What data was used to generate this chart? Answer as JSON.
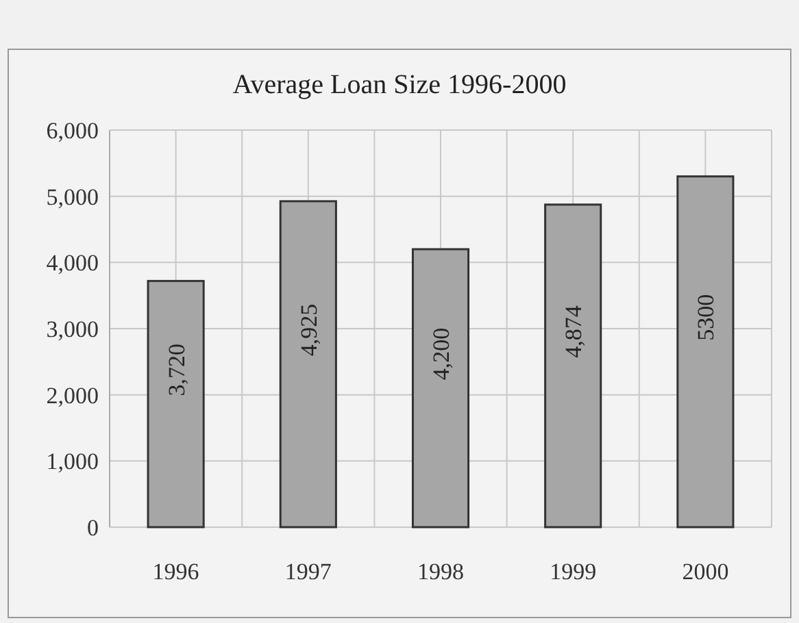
{
  "chart_data": {
    "type": "bar",
    "title": "Average Loan Size 1996-2000",
    "categories": [
      "1996",
      "1997",
      "1998",
      "1999",
      "2000"
    ],
    "values": [
      3720,
      4925,
      4200,
      4874,
      5300
    ],
    "value_labels": [
      "3,720",
      "4,925",
      "4,200",
      "4,874",
      "5300"
    ],
    "color": "#a6a6a6",
    "ylim": [
      0,
      6000
    ],
    "yticks": [
      {
        "value": 0,
        "label": "0"
      },
      {
        "value": 1000,
        "label": "1,000"
      },
      {
        "value": 2000,
        "label": "2,000"
      },
      {
        "value": 3000,
        "label": "3,000"
      },
      {
        "value": 4000,
        "label": "4,000"
      },
      {
        "value": 5000,
        "label": "5,000"
      },
      {
        "value": 6000,
        "label": "6,000"
      }
    ],
    "grid": true
  }
}
